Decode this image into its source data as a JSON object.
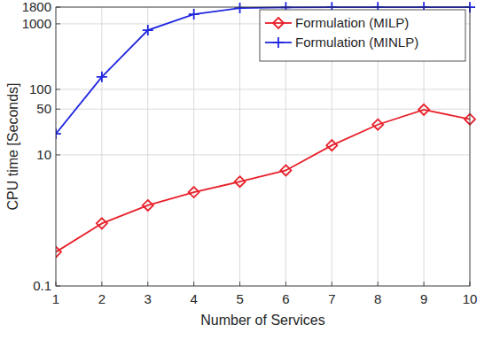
{
  "chart_data": {
    "type": "line",
    "x_label": "Number of Services",
    "y_label": "CPU time [Seconds]",
    "x": [
      1,
      2,
      3,
      4,
      5,
      6,
      7,
      8,
      9,
      10
    ],
    "series": [
      {
        "name": "Formulation (MILP)",
        "color": "#e8202a",
        "marker": "diamond",
        "line_style": "solid",
        "values": [
          0.33,
          0.9,
          1.7,
          2.7,
          3.9,
          5.8,
          14,
          29,
          49,
          35
        ]
      },
      {
        "name": "Formulation (MINLP)",
        "color": "#1f26e0",
        "marker": "plus",
        "line_style": "solid",
        "values": [
          21,
          155,
          800,
          1400,
          1740,
          1780,
          1790,
          1790,
          1790,
          1790
        ]
      }
    ],
    "xlim": [
      1,
      10
    ],
    "xticks": [
      1,
      2,
      3,
      4,
      5,
      6,
      7,
      8,
      9,
      10
    ],
    "ylim": [
      0.1,
      1800
    ],
    "yticks": [
      0.1,
      10,
      50,
      100,
      1000,
      1800
    ],
    "log": "y",
    "grid": true,
    "legend": "upper right"
  }
}
